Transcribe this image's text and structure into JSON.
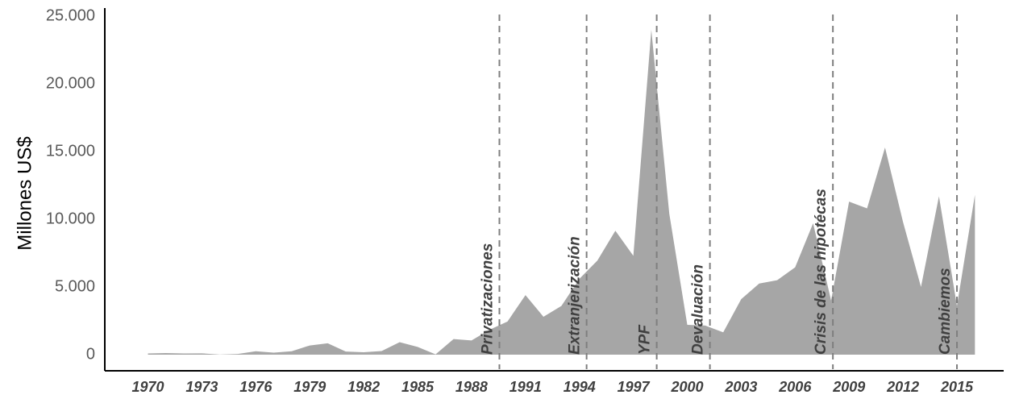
{
  "chart_data": {
    "type": "area",
    "y_label": "Millones US$",
    "color": "#a6a6a6",
    "x": [
      1970,
      1971,
      1972,
      1973,
      1974,
      1975,
      1976,
      1977,
      1978,
      1979,
      1980,
      1981,
      1982,
      1983,
      1984,
      1985,
      1986,
      1987,
      1988,
      1989,
      1990,
      1991,
      1992,
      1993,
      1994,
      1995,
      1996,
      1997,
      1998,
      1999,
      2000,
      2001,
      2002,
      2003,
      2004,
      2005,
      2006,
      2007,
      2008,
      2009,
      2010,
      2011,
      2012,
      2013,
      2014,
      2015,
      2016
    ],
    "values": [
      90,
      120,
      90,
      100,
      10,
      50,
      250,
      150,
      250,
      680,
      840,
      230,
      180,
      270,
      920,
      570,
      20,
      1150,
      1050,
      1840,
      2450,
      4400,
      2800,
      3600,
      5600,
      6950,
      9150,
      7300,
      23990,
      10400,
      2200,
      2150,
      1650,
      4100,
      5250,
      5500,
      6450,
      9700,
      4000,
      11300,
      10800,
      15300,
      9800,
      5000,
      11700,
      3600,
      11800
    ],
    "xlim": [
      1967.6,
      2017.6
    ],
    "xticks": [
      1970,
      1973,
      1976,
      1979,
      1982,
      1985,
      1988,
      1991,
      1994,
      1997,
      2000,
      2003,
      2006,
      2009,
      2012,
      2015
    ],
    "ylim": [
      0,
      25000
    ],
    "yticks": [
      0,
      {
        "value": 5000,
        "label": "5.000"
      },
      {
        "value": 10000,
        "label": "10.000"
      },
      {
        "value": 15000,
        "label": "15.000"
      },
      {
        "value": 20000,
        "label": "20.000"
      },
      {
        "value": 25000,
        "label": "25.000"
      }
    ],
    "annotations": [
      {
        "x": 1989.55,
        "label": "Privatizaciones"
      },
      {
        "x": 1994.4,
        "label": "Extranjerización"
      },
      {
        "x": 1998.3,
        "label": "YPF"
      },
      {
        "x": 2001.26,
        "label": "Devaluación"
      },
      {
        "x": 2008.1,
        "label": "Crisis de las hipotécas"
      },
      {
        "x": 2015.0,
        "label": "Cambiemos"
      }
    ]
  }
}
